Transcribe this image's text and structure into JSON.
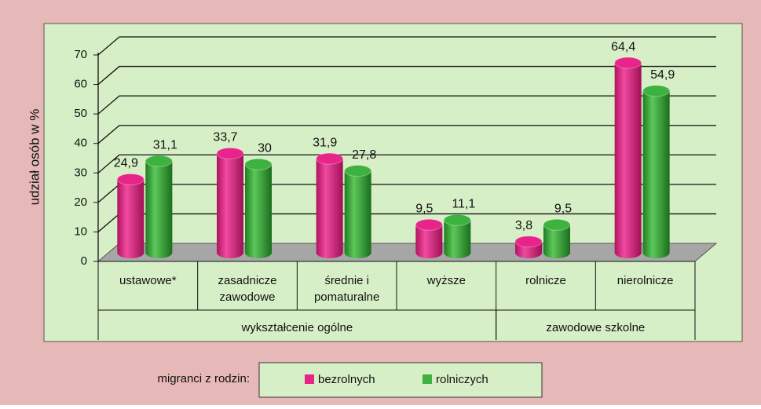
{
  "chart_data": {
    "type": "bar3d",
    "y_label": "udział osób w %",
    "categories": [
      [
        "ustawowe*"
      ],
      [
        "zasadnicze",
        "zawodowe"
      ],
      [
        "średnie i",
        "pomaturalne"
      ],
      [
        "wyższe"
      ],
      [
        "rolnicze"
      ],
      [
        "nierolnicze"
      ]
    ],
    "groups": [
      {
        "name": "wykształcenie ogólne",
        "size": 4
      },
      {
        "name": "zawodowe szkolne",
        "size": 2
      }
    ],
    "series": [
      {
        "name": "bezrolnych",
        "color": "#e8238a",
        "values": [
          24.9,
          33.7,
          31.9,
          9.5,
          3.8,
          64.4
        ],
        "value_labels": [
          "24,9",
          "33,7",
          "31,9",
          "9,5",
          "3,8",
          "64,4"
        ]
      },
      {
        "name": "rolniczych",
        "color": "#3db23f",
        "values": [
          31.1,
          30,
          27.8,
          11.1,
          9.5,
          54.9
        ],
        "value_labels": [
          "31,1",
          "30",
          "27,8",
          "11,1",
          "9,5",
          "54,9"
        ]
      }
    ],
    "legend_title": "migranci z rodzin:",
    "ylim": [
      0,
      70
    ],
    "yticks": [
      0,
      10,
      20,
      30,
      40,
      50,
      60,
      70
    ],
    "grid": true
  }
}
